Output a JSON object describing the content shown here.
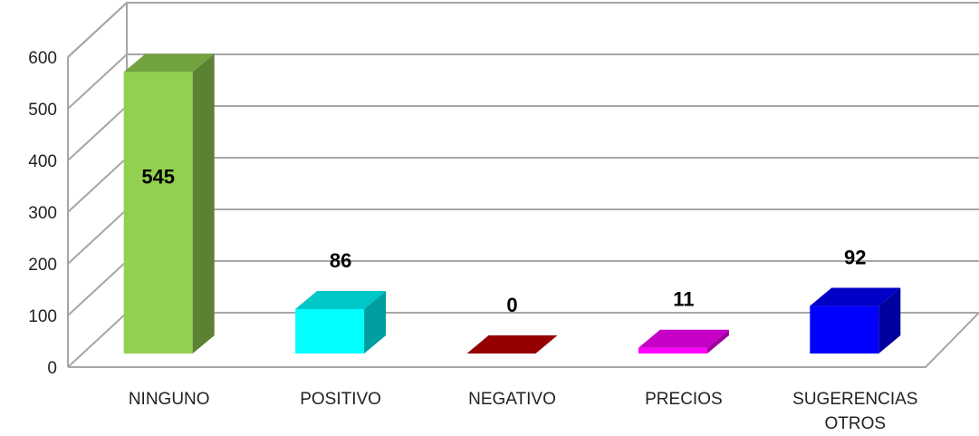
{
  "chart_data": {
    "type": "bar",
    "categories": [
      "NINGUNO",
      "POSITIVO",
      "NEGATIVO",
      "PRECIOS",
      [
        "SUGERENCIAS",
        "OTROS"
      ]
    ],
    "values": [
      545,
      86,
      0,
      11,
      92
    ],
    "data_labels": [
      "545",
      "86",
      "0",
      "11",
      "92"
    ],
    "colors": [
      "#92D050",
      "#00FFFF",
      "#C00000",
      "#FF00FF",
      "#0000FF"
    ],
    "yticks": [
      0,
      100,
      200,
      300,
      400,
      500,
      600
    ],
    "ylim": [
      0,
      600
    ],
    "grid": true,
    "style": "3d-columns",
    "title": "",
    "xlabel": "",
    "ylabel": ""
  }
}
